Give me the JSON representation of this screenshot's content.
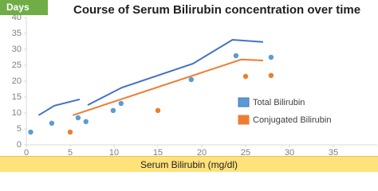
{
  "chart_data": {
    "type": "scatter",
    "title": "Course of Serum Bilirubin concentration over time",
    "y_label": "Days",
    "x_label": "Serum Bilirubin (mg/dl)",
    "xlim": [
      0,
      40
    ],
    "ylim": [
      0,
      40
    ],
    "xticks": [
      0,
      5,
      10,
      15,
      20,
      25,
      30,
      35
    ],
    "yticks": [
      0,
      5,
      10,
      15,
      20,
      25,
      30,
      35,
      40
    ],
    "grid": false,
    "legend": "right",
    "series": [
      {
        "name": "Total Bilirubin",
        "color": "#5b9bd5",
        "line_color": "#4472c4",
        "x": [
          0.5,
          2.9,
          5.9,
          6.8,
          9.9,
          10.8,
          18.8,
          23.9,
          27.9
        ],
        "values": [
          4,
          6.8,
          8.5,
          7.3,
          10.8,
          13,
          20.5,
          28,
          27.5
        ],
        "line_x": [
          1.4,
          3.2,
          6.1,
          6.6,
          7,
          10.9,
          19,
          23.5,
          27
        ],
        "line_values": [
          9.3,
          12.3,
          14.3,
          null,
          12.5,
          18,
          25.5,
          33,
          32.3
        ]
      },
      {
        "name": "Conjugated Bilirubin",
        "color": "#ed7d31",
        "line_color": "#ed7d31",
        "x": [
          5,
          15,
          25,
          27.9
        ],
        "values": [
          4,
          10.8,
          21.5,
          21.8
        ],
        "line_x": [
          5.3,
          24.5,
          27
        ],
        "line_values": [
          9.3,
          26.8,
          26.5
        ]
      }
    ]
  }
}
